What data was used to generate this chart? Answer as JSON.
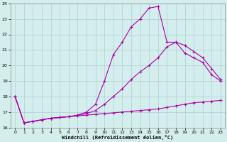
{
  "xlabel": "Windchill (Refroidissement éolien,°C)",
  "ylabel": "",
  "xlim": [
    -0.5,
    23.5
  ],
  "ylim": [
    16,
    24
  ],
  "yticks": [
    16,
    17,
    18,
    19,
    20,
    21,
    22,
    23,
    24
  ],
  "xticks": [
    0,
    1,
    2,
    3,
    4,
    5,
    6,
    7,
    8,
    9,
    10,
    11,
    12,
    13,
    14,
    15,
    16,
    17,
    18,
    19,
    20,
    21,
    22,
    23
  ],
  "background_color": "#d4eeed",
  "grid_color": "#b0cece",
  "line_color": "#aa00aa",
  "line1_x": [
    0,
    1,
    2,
    3,
    4,
    5,
    6,
    7,
    8,
    9,
    10,
    11,
    12,
    13,
    14,
    15,
    16,
    17,
    18,
    19,
    20,
    21,
    22,
    23
  ],
  "line1_y": [
    18.0,
    16.3,
    16.4,
    16.5,
    16.6,
    16.65,
    16.7,
    16.75,
    16.8,
    16.85,
    16.9,
    16.95,
    17.0,
    17.05,
    17.1,
    17.15,
    17.2,
    17.3,
    17.4,
    17.5,
    17.6,
    17.65,
    17.7,
    17.75
  ],
  "line2_x": [
    0,
    1,
    2,
    3,
    4,
    5,
    6,
    7,
    8,
    9,
    10,
    11,
    12,
    13,
    14,
    15,
    16,
    17,
    18,
    19,
    20,
    21,
    22,
    23
  ],
  "line2_y": [
    18.0,
    16.3,
    16.4,
    16.5,
    16.6,
    16.65,
    16.7,
    16.8,
    16.9,
    17.1,
    17.5,
    18.0,
    18.5,
    19.1,
    19.6,
    20.0,
    20.5,
    21.2,
    21.5,
    20.8,
    20.5,
    20.2,
    19.4,
    19.0
  ],
  "line3_x": [
    0,
    1,
    2,
    3,
    4,
    5,
    6,
    7,
    8,
    9,
    10,
    11,
    12,
    13,
    14,
    15,
    16,
    17,
    18,
    19,
    20,
    21,
    22,
    23
  ],
  "line3_y": [
    18.0,
    16.3,
    16.4,
    16.5,
    16.6,
    16.65,
    16.7,
    16.8,
    17.0,
    17.5,
    19.0,
    20.7,
    21.5,
    22.5,
    23.0,
    23.7,
    23.8,
    21.5,
    21.5,
    21.3,
    20.9,
    20.5,
    19.8,
    19.1
  ]
}
